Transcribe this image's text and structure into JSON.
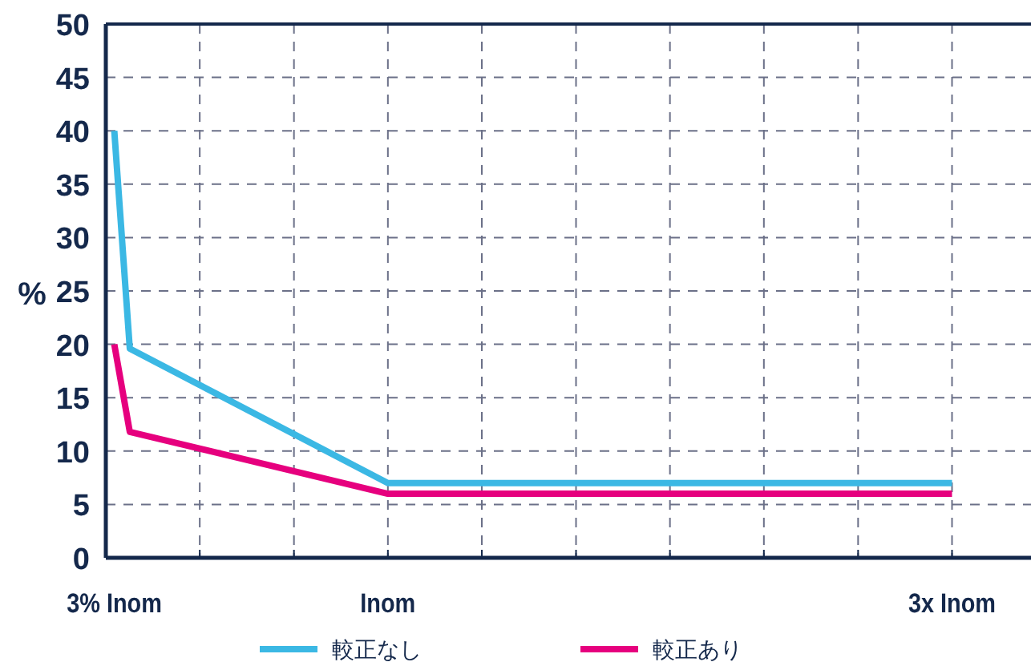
{
  "chart_data": {
    "type": "line",
    "ylabel": "%",
    "xlim": [
      0,
      3.28
    ],
    "ylim": [
      0,
      50
    ],
    "xticks": [
      {
        "value": 0.03,
        "label": "3% Inom"
      },
      {
        "value": 0.333,
        "label": null
      },
      {
        "value": 0.667,
        "label": null
      },
      {
        "value": 1,
        "label": "Inom"
      },
      {
        "value": 1.333,
        "label": null
      },
      {
        "value": 1.667,
        "label": null
      },
      {
        "value": 2,
        "label": null
      },
      {
        "value": 2.333,
        "label": null
      },
      {
        "value": 2.667,
        "label": null
      },
      {
        "value": 3,
        "label": "3x Inom"
      }
    ],
    "yticks": [
      0,
      5,
      10,
      15,
      20,
      25,
      30,
      35,
      40,
      45,
      50
    ],
    "grid": true,
    "legend": "bottom",
    "line_style": "solid",
    "marker": "none",
    "series": [
      {
        "name": "較正なし",
        "color": "#3bb8e4",
        "x": [
          0.03,
          0.085,
          1,
          3
        ],
        "values": [
          40,
          19.6,
          7,
          7
        ]
      },
      {
        "name": "較正あり",
        "color": "#e6007e",
        "x": [
          0.03,
          0.085,
          1,
          3
        ],
        "values": [
          20,
          11.8,
          6,
          6
        ]
      }
    ]
  }
}
